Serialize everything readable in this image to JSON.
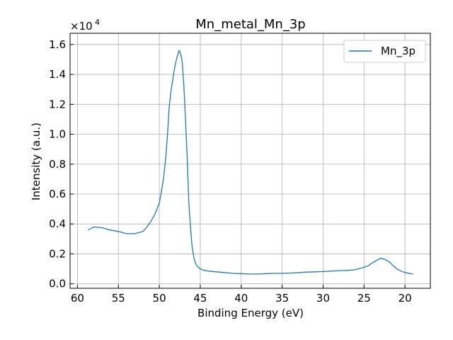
{
  "chart_data": {
    "type": "line",
    "title": "Mn_metal_Mn_3p",
    "xlabel": "Binding Energy (eV)",
    "ylabel": "Intensity (a.u.)",
    "y_scale_label": "×10",
    "y_scale_exponent": "4",
    "y_multiplier": 10000,
    "x_inverted": true,
    "xlim": [
      60.9,
      16.9
    ],
    "ylim": [
      -300,
      16750
    ],
    "x_ticks": [
      60,
      55,
      50,
      45,
      40,
      35,
      30,
      25,
      20
    ],
    "y_ticks": [
      {
        "value": 0,
        "label": "0.0"
      },
      {
        "value": 2000,
        "label": "0.2"
      },
      {
        "value": 4000,
        "label": "0.4"
      },
      {
        "value": 6000,
        "label": "0.6"
      },
      {
        "value": 8000,
        "label": "0.8"
      },
      {
        "value": 10000,
        "label": "1.0"
      },
      {
        "value": 12000,
        "label": "1.2"
      },
      {
        "value": 14000,
        "label": "1.4"
      },
      {
        "value": 16000,
        "label": "1.6"
      }
    ],
    "grid": true,
    "legend_position": "top-right",
    "series": [
      {
        "name": "Mn_3p",
        "color": "#1f77b4",
        "x": [
          58.7,
          58.0,
          57.0,
          56.0,
          55.0,
          54.0,
          53.0,
          52.0,
          51.5,
          51.0,
          50.5,
          50.0,
          49.8,
          49.5,
          49.2,
          49.0,
          48.8,
          48.6,
          48.4,
          48.2,
          48.0,
          47.8,
          47.6,
          47.4,
          47.2,
          47.0,
          46.8,
          46.6,
          46.4,
          46.2,
          46.0,
          45.8,
          45.6,
          45.4,
          45.2,
          45.0,
          44.5,
          44.0,
          43.0,
          42.0,
          41.0,
          40.0,
          39.0,
          38.0,
          37.0,
          36.0,
          35.0,
          34.0,
          33.0,
          32.0,
          31.0,
          30.0,
          29.0,
          28.0,
          27.0,
          26.0,
          25.0,
          24.5,
          24.0,
          23.5,
          23.0,
          22.5,
          22.0,
          21.5,
          21.0,
          20.5,
          20.0,
          19.5,
          19.0
        ],
        "y": [
          3600,
          3800,
          3750,
          3600,
          3500,
          3350,
          3350,
          3500,
          3800,
          4200,
          4700,
          5400,
          6000,
          7000,
          8500,
          10000,
          11800,
          12800,
          13500,
          14200,
          14800,
          15200,
          15600,
          15400,
          14800,
          13200,
          11000,
          8500,
          5500,
          3800,
          2500,
          1800,
          1400,
          1200,
          1100,
          1000,
          900,
          850,
          800,
          750,
          700,
          680,
          650,
          650,
          680,
          700,
          700,
          720,
          750,
          780,
          800,
          820,
          850,
          880,
          900,
          950,
          1100,
          1200,
          1400,
          1550,
          1700,
          1650,
          1500,
          1250,
          1000,
          850,
          750,
          700,
          650
        ]
      }
    ]
  }
}
